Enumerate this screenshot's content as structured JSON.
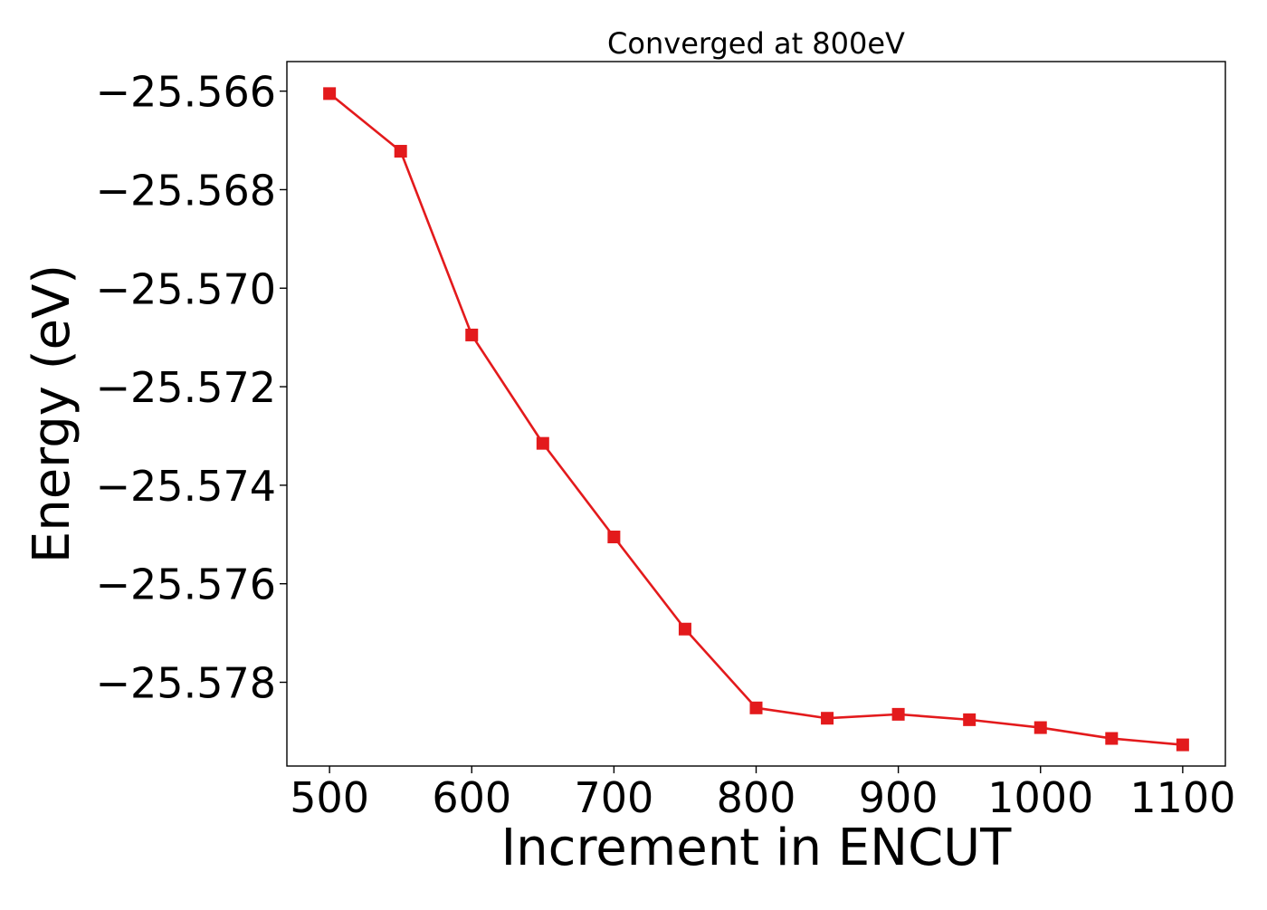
{
  "chart_data": {
    "type": "line",
    "title": "Converged at 800eV",
    "xlabel": "Increment in ENCUT",
    "ylabel": "Energy (eV)",
    "x": [
      500,
      550,
      600,
      650,
      700,
      750,
      800,
      850,
      900,
      950,
      1000,
      1050,
      1100
    ],
    "series": [
      {
        "values": [
          -25.56605,
          -25.56722,
          -25.57095,
          -25.57315,
          -25.57505,
          -25.57692,
          -25.57852,
          -25.57873,
          -25.57865,
          -25.57876,
          -25.57892,
          -25.57914,
          -25.57927
        ],
        "color": "#e31a1c",
        "marker": "square"
      }
    ],
    "xlim": [
      470,
      1130
    ],
    "ylim": [
      -25.5797,
      -25.5654
    ],
    "xticks": [
      500,
      600,
      700,
      800,
      900,
      1000,
      1100
    ],
    "xtick_labels": [
      "500",
      "600",
      "700",
      "800",
      "900",
      "1000",
      "1100"
    ],
    "yticks": [
      -25.566,
      -25.568,
      -25.57,
      -25.572,
      -25.574,
      -25.576,
      -25.578
    ],
    "ytick_labels": [
      "−25.566",
      "−25.568",
      "−25.570",
      "−25.572",
      "−25.574",
      "−25.576",
      "−25.578"
    ],
    "grid": false,
    "legend": "none"
  }
}
